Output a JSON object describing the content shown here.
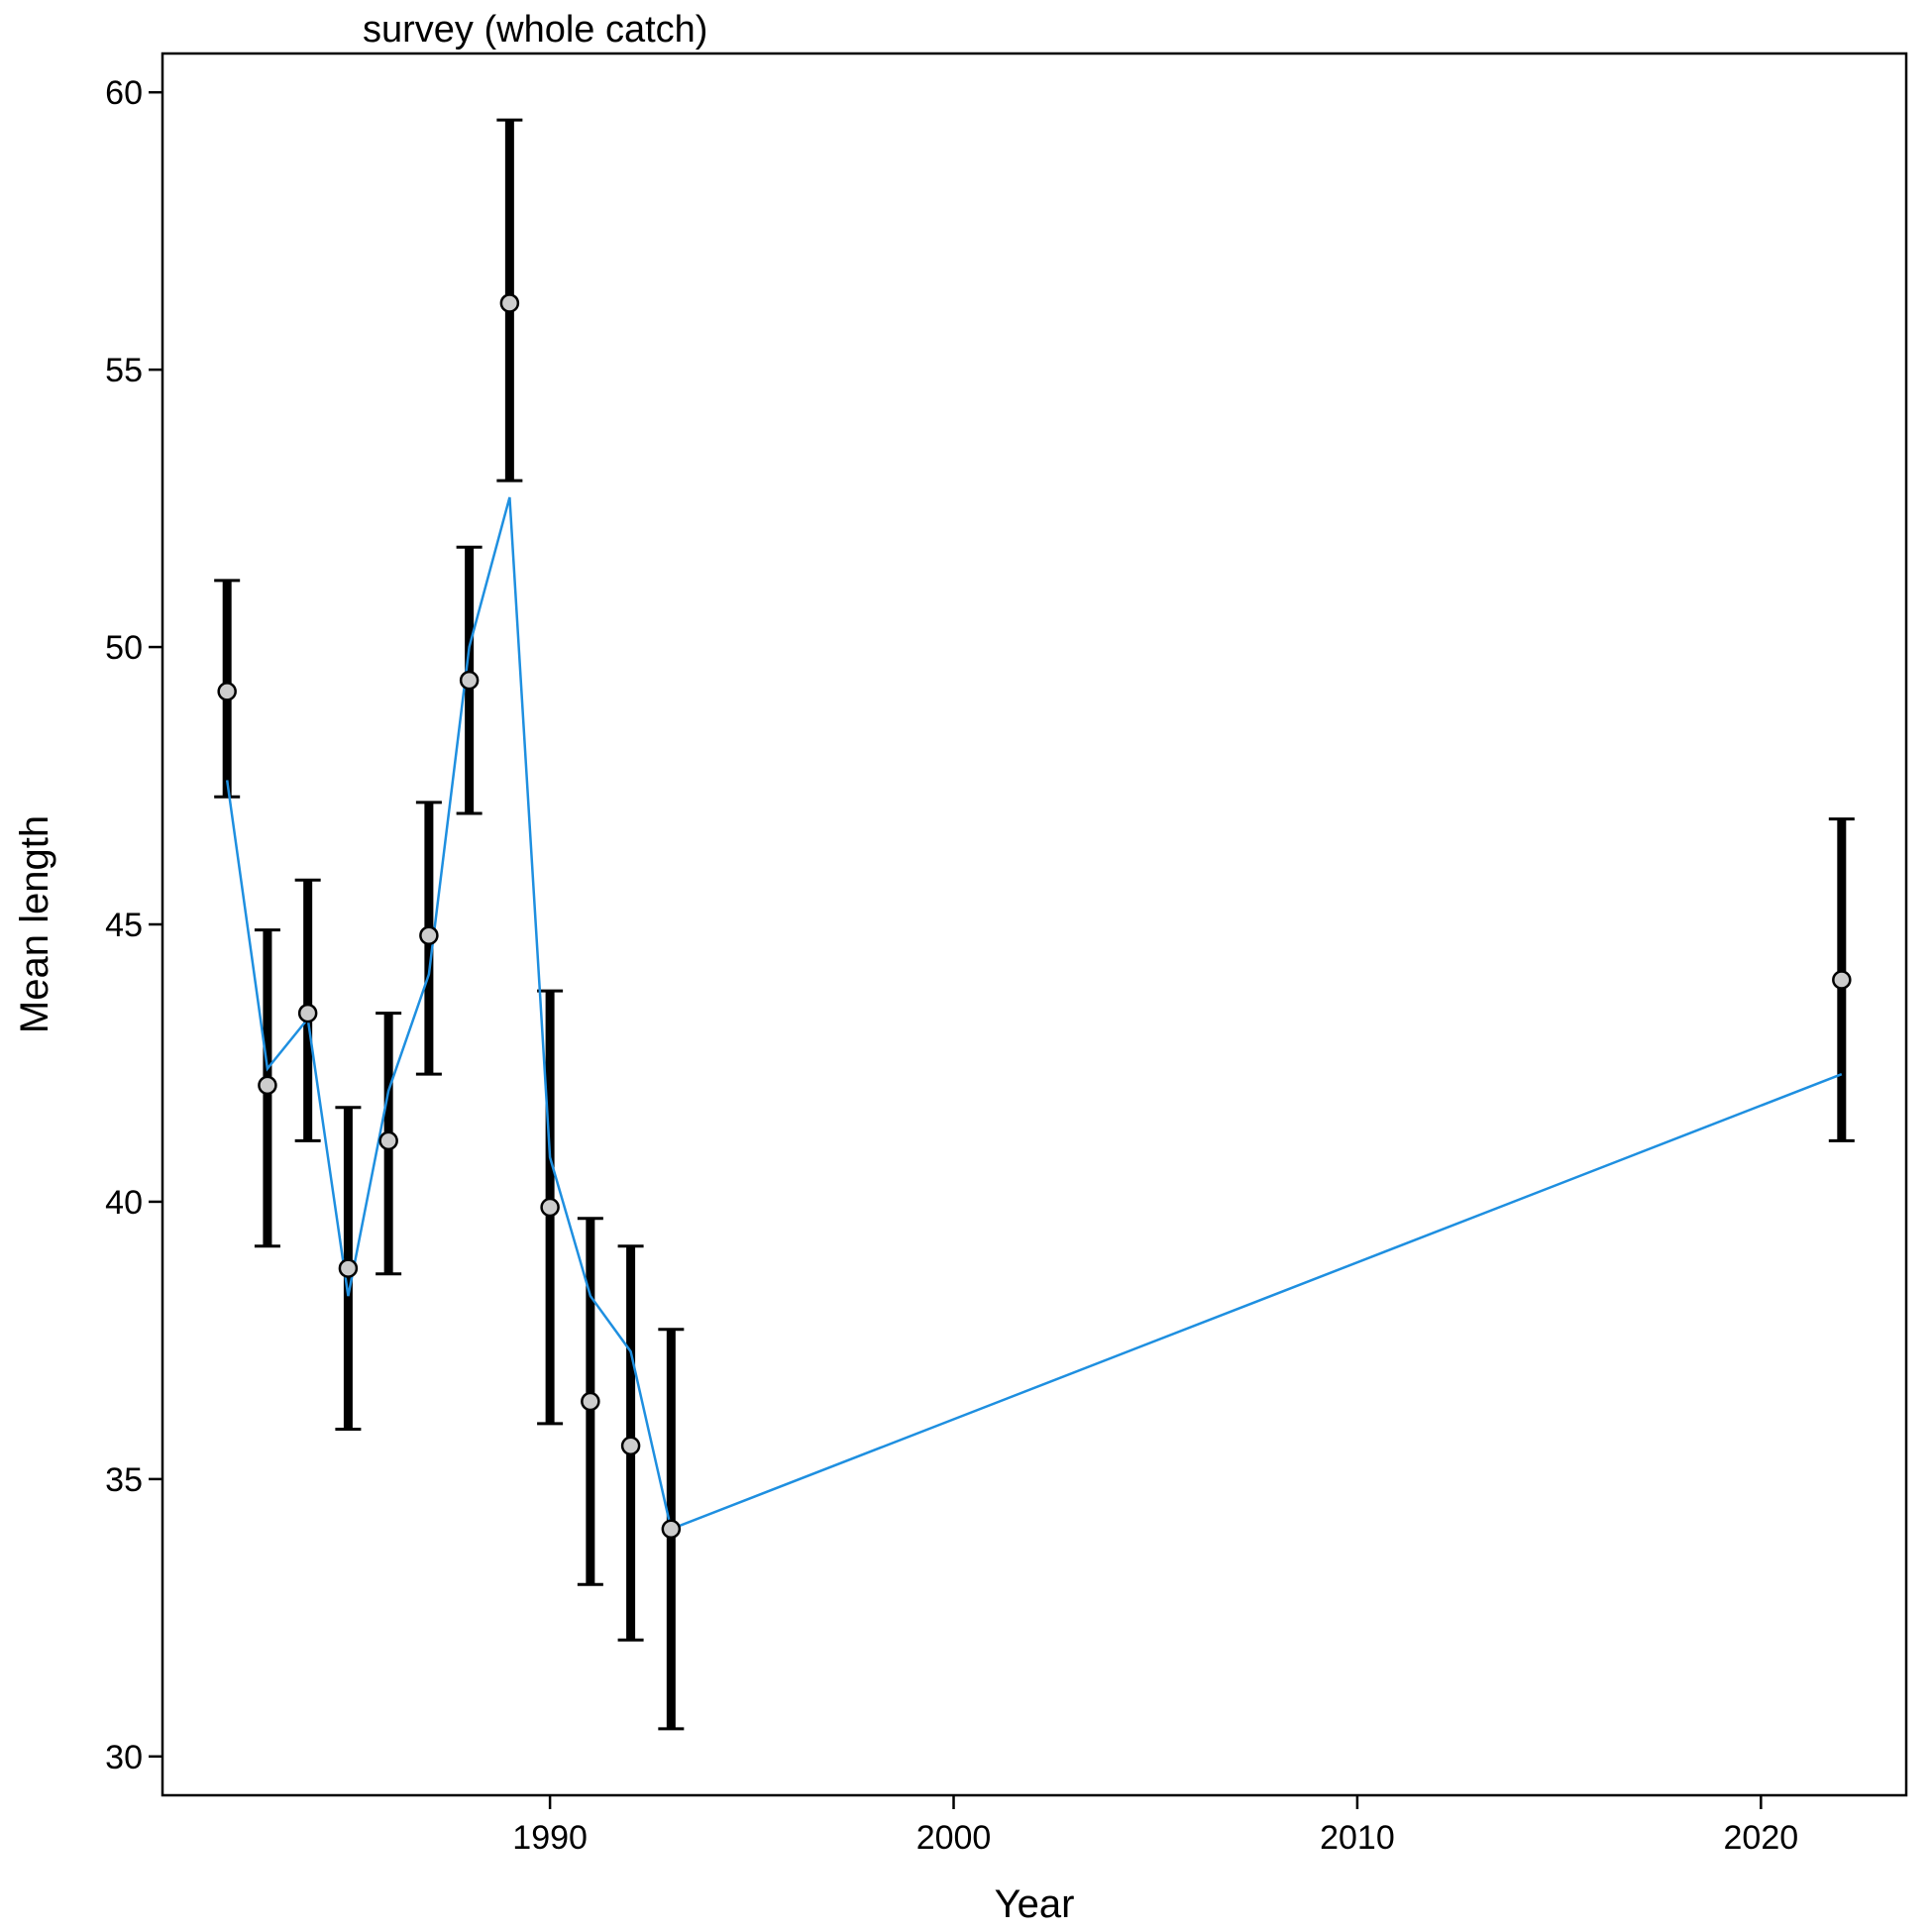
{
  "chart_data": {
    "type": "scatter",
    "title": "survey (whole catch)",
    "xlabel": "Year",
    "ylabel": "Mean length",
    "xlim": [
      1980.4,
      2023.6
    ],
    "ylim": [
      29.3,
      60.7
    ],
    "xticks": [
      1990,
      2000,
      2010,
      2020
    ],
    "yticks": [
      30,
      35,
      40,
      45,
      50,
      55,
      60
    ],
    "grid": false,
    "legend": "none",
    "series": [
      {
        "kind": "points_with_error_bars",
        "x": [
          1982,
          1983,
          1984,
          1985,
          1986,
          1987,
          1988,
          1989,
          1990,
          1991,
          1992,
          1993,
          2022
        ],
        "y": [
          49.2,
          42.1,
          43.4,
          38.8,
          41.1,
          44.8,
          49.4,
          56.2,
          39.9,
          36.4,
          35.6,
          34.1,
          44.0
        ],
        "lower": [
          47.3,
          39.2,
          41.1,
          35.9,
          38.7,
          42.3,
          47.0,
          53.0,
          36.0,
          33.1,
          32.1,
          30.5,
          41.1
        ],
        "upper": [
          51.2,
          44.9,
          45.8,
          41.7,
          43.4,
          47.2,
          51.8,
          59.5,
          43.8,
          39.7,
          39.2,
          37.7,
          46.9
        ],
        "marker_fill": "#cccccc",
        "marker_edge": "#000000",
        "bar_color": "#000000"
      },
      {
        "kind": "line",
        "x": [
          1982,
          1983,
          1984,
          1985,
          1986,
          1987,
          1988,
          1989,
          1990,
          1991,
          1992,
          1993,
          2022
        ],
        "y": [
          47.6,
          42.4,
          43.3,
          38.3,
          42.0,
          44.1,
          50.0,
          52.7,
          40.8,
          38.3,
          37.3,
          34.1,
          42.3
        ],
        "color": "#1e8fe0"
      }
    ]
  }
}
